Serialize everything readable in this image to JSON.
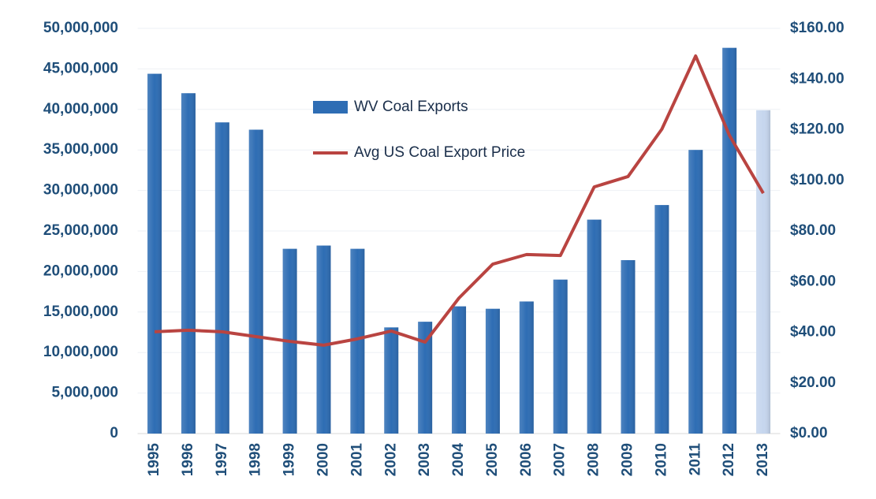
{
  "chart_data": {
    "type": "bar-line",
    "categories": [
      "1995",
      "1996",
      "1997",
      "1998",
      "1999",
      "2000",
      "2001",
      "2002",
      "2003",
      "2004",
      "2005",
      "2006",
      "2007",
      "2008",
      "2009",
      "2010",
      "2011",
      "2012",
      "2013"
    ],
    "series": [
      {
        "name": "WV Coal Exports",
        "type": "bar",
        "color": "#2e6db4",
        "axis": "y",
        "bar_colors": [
          "#2e6db4",
          "#2e6db4",
          "#2e6db4",
          "#2e6db4",
          "#2e6db4",
          "#2e6db4",
          "#2e6db4",
          "#2e6db4",
          "#2e6db4",
          "#2e6db4",
          "#2e6db4",
          "#2e6db4",
          "#2e6db4",
          "#2e6db4",
          "#2e6db4",
          "#2e6db4",
          "#2e6db4",
          "#2e6db4",
          "#c6d6ee"
        ],
        "values": [
          44400000,
          42000000,
          38400000,
          37500000,
          22800000,
          23200000,
          22800000,
          13100000,
          13800000,
          15700000,
          15400000,
          16300000,
          19000000,
          26400000,
          21400000,
          28200000,
          35000000,
          47600000,
          39900000
        ]
      },
      {
        "name": "Avg US Coal Export Price",
        "type": "line",
        "color": "#b94441",
        "axis": "y2",
        "values": [
          40.2,
          40.8,
          40.2,
          38.3,
          36.4,
          34.9,
          37.4,
          40.5,
          36.1,
          53.5,
          66.9,
          70.7,
          70.3,
          97.4,
          101.5,
          120.2,
          149.1,
          117.7,
          94.9
        ]
      }
    ],
    "ylim": [
      0,
      50000000
    ],
    "yticks": [
      0,
      {
        "value": 5000000,
        "label": "5,000,000"
      },
      {
        "value": 10000000,
        "label": "10,000,000"
      },
      {
        "value": 15000000,
        "label": "15,000,000"
      },
      {
        "value": 20000000,
        "label": "20,000,000"
      },
      {
        "value": 25000000,
        "label": "25,000,000"
      },
      {
        "value": 30000000,
        "label": "30,000,000"
      },
      {
        "value": 35000000,
        "label": "35,000,000"
      },
      {
        "value": 40000000,
        "label": "40,000,000"
      },
      {
        "value": 45000000,
        "label": "45,000,000"
      },
      {
        "value": 50000000,
        "label": "50,000,000"
      }
    ],
    "y2lim": [
      0,
      160
    ],
    "y2ticks": [
      {
        "value": 0,
        "label": "$0.00"
      },
      {
        "value": 20,
        "label": "$20.00"
      },
      {
        "value": 40,
        "label": "$40.00"
      },
      {
        "value": 60,
        "label": "$60.00"
      },
      {
        "value": 80,
        "label": "$80.00"
      },
      {
        "value": 100,
        "label": "$100.00"
      },
      {
        "value": 120,
        "label": "$120.00"
      },
      {
        "value": 140,
        "label": "$140.00"
      },
      {
        "value": 160,
        "label": "$160.00"
      }
    ],
    "grid": true
  }
}
